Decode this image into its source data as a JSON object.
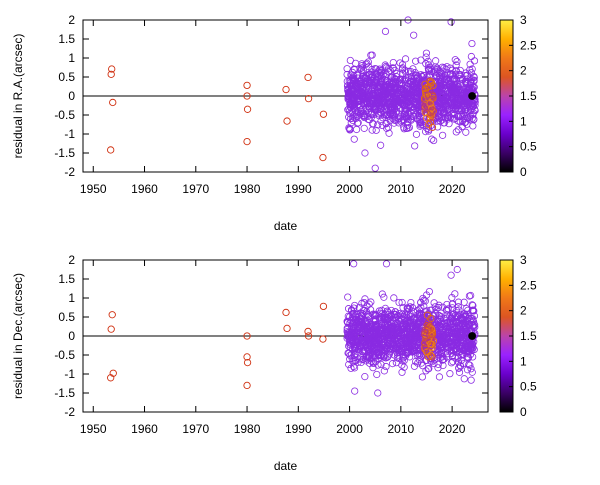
{
  "colors": {
    "old_obs": "#d03010",
    "recent_obs": "#8a2be2",
    "zero_line": "#000000"
  },
  "colorbar": {
    "ticks": [
      "0",
      "0.5",
      "1",
      "1.5",
      "2",
      "2.5",
      "3"
    ],
    "range": [
      0,
      3
    ],
    "palette": [
      "#000000",
      "#3a0066",
      "#6a00cc",
      "#9a22ff",
      "#bb44aa",
      "#dd5522",
      "#f07818",
      "#ffb000",
      "#ffee44"
    ]
  },
  "chart_data": [
    {
      "type": "scatter",
      "xlabel": "date",
      "ylabel": "residual in R.A.(arcsec)",
      "xlim": [
        1948,
        2027
      ],
      "ylim": [
        -2,
        2
      ],
      "xticks": [
        "1950",
        "1960",
        "1970",
        "1980",
        "1990",
        "2000",
        "2010",
        "2020"
      ],
      "yticks": [
        "2",
        "1.5",
        "1",
        "0.5",
        "0",
        "-0.5",
        "-1",
        "-1.5",
        "-2"
      ],
      "old_points": [
        [
          1953.6,
          0.71
        ],
        [
          1953.5,
          0.57
        ],
        [
          1953.8,
          -0.17
        ],
        [
          1953.4,
          -1.42
        ],
        [
          1980.0,
          0.28
        ],
        [
          1980.0,
          0.0
        ],
        [
          1980.1,
          -0.35
        ],
        [
          1980.0,
          -1.2
        ],
        [
          1987.6,
          0.17
        ],
        [
          1987.8,
          -0.66
        ],
        [
          1991.9,
          0.49
        ],
        [
          1992.0,
          -0.07
        ],
        [
          1994.9,
          -0.48
        ],
        [
          1994.8,
          -1.62
        ]
      ],
      "dense_cluster": {
        "x_range": [
          1999.5,
          2024.5
        ],
        "spread": 0.4,
        "count": 1400,
        "seed": 7
      },
      "outliers": [
        [
          2011.4,
          2.0
        ],
        [
          2019.8,
          1.95
        ],
        [
          2007.0,
          1.7
        ],
        [
          2005.0,
          -1.9
        ],
        [
          2003.0,
          -1.5
        ],
        [
          2012.5,
          1.6
        ]
      ],
      "hot_spot": {
        "x": 2015.5,
        "y": -0.15
      },
      "end_marker": [
        2023.9,
        0.0
      ]
    },
    {
      "type": "scatter",
      "xlabel": "date",
      "ylabel": "residual in Dec.(arcsec)",
      "xlim": [
        1948,
        2027
      ],
      "ylim": [
        -2,
        2
      ],
      "xticks": [
        "1950",
        "1960",
        "1970",
        "1980",
        "1990",
        "2000",
        "2010",
        "2020"
      ],
      "yticks": [
        "2",
        "1.5",
        "1",
        "0.5",
        "0",
        "-0.5",
        "-1",
        "-1.5",
        "-2"
      ],
      "old_points": [
        [
          1953.7,
          0.56
        ],
        [
          1953.5,
          0.18
        ],
        [
          1953.9,
          -0.98
        ],
        [
          1953.4,
          -1.1
        ],
        [
          1980.0,
          0.0
        ],
        [
          1980.0,
          -0.55
        ],
        [
          1980.1,
          -0.7
        ],
        [
          1980.0,
          -1.3
        ],
        [
          1987.6,
          0.62
        ],
        [
          1987.8,
          0.2
        ],
        [
          1991.9,
          0.12
        ],
        [
          1992.0,
          0.0
        ],
        [
          1994.9,
          0.78
        ],
        [
          1994.8,
          -0.08
        ]
      ],
      "dense_cluster": {
        "x_range": [
          1999.5,
          2024.5
        ],
        "spread": 0.4,
        "count": 1400,
        "seed": 13
      },
      "outliers": [
        [
          2000.8,
          1.9
        ],
        [
          2007.2,
          1.9
        ],
        [
          2019.8,
          1.6
        ],
        [
          2021.0,
          1.75
        ],
        [
          2005.5,
          -1.5
        ],
        [
          2001.0,
          -1.45
        ]
      ],
      "hot_spot": {
        "x": 2015.5,
        "y": -0.05
      },
      "end_marker": [
        2023.9,
        0.0
      ]
    }
  ]
}
